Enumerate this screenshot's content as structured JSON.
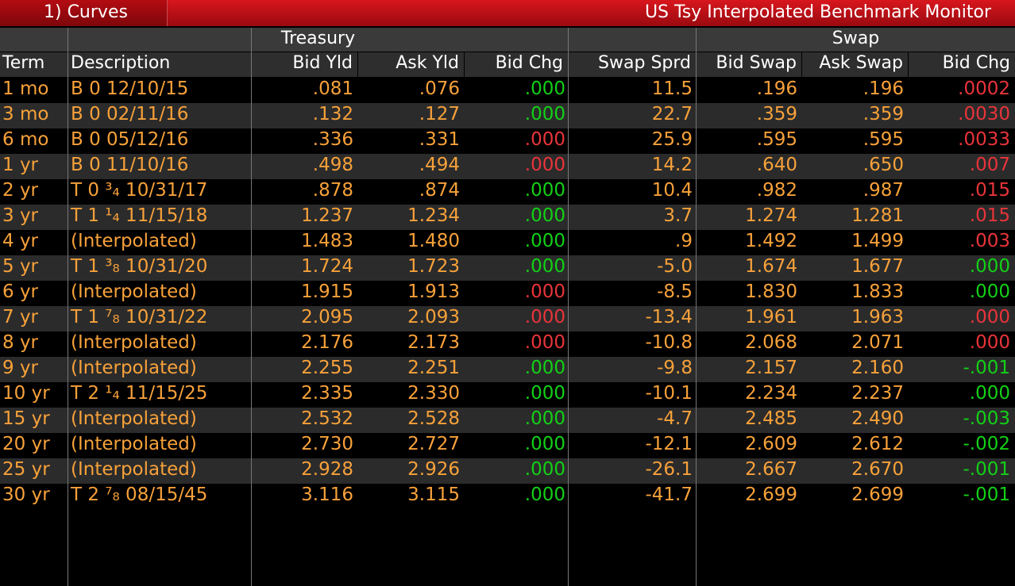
{
  "tab": {
    "label": "1) Curves"
  },
  "title": "US Tsy Interpolated Benchmark Monitor",
  "groups": {
    "treasury": "Treasury",
    "swap": "Swap"
  },
  "columns": {
    "term": "Term",
    "description": "Description",
    "bid_yld": "Bid Yld",
    "ask_yld": "Ask Yld",
    "bid_chg": "Bid Chg",
    "swap_sprd": "Swap Sprd",
    "bid_swap": "Bid Swap",
    "ask_swap": "Ask Swap",
    "swap_bid_chg": "Bid Chg"
  },
  "colors": {
    "orange": "#f7a13a",
    "up": "#13d017",
    "down": "#e8343a",
    "bar": "#c8141b"
  },
  "rows": [
    {
      "term": "1 mo",
      "desc": "B 0 12/10/15",
      "bid_yld": ".081",
      "ask_yld": ".076",
      "bid_chg": ".000",
      "bid_chg_color": "up",
      "swap_sprd": "11.5",
      "bid_swap": ".196",
      "ask_swap": ".196",
      "swap_chg": ".0002",
      "swap_chg_color": "down"
    },
    {
      "term": "3 mo",
      "desc": "B 0 02/11/16",
      "bid_yld": ".132",
      "ask_yld": ".127",
      "bid_chg": ".000",
      "bid_chg_color": "up",
      "swap_sprd": "22.7",
      "bid_swap": ".359",
      "ask_swap": ".359",
      "swap_chg": ".0030",
      "swap_chg_color": "down"
    },
    {
      "term": "6 mo",
      "desc": "B 0 05/12/16",
      "bid_yld": ".336",
      "ask_yld": ".331",
      "bid_chg": ".000",
      "bid_chg_color": "down",
      "swap_sprd": "25.9",
      "bid_swap": ".595",
      "ask_swap": ".595",
      "swap_chg": ".0033",
      "swap_chg_color": "down"
    },
    {
      "term": "1 yr",
      "desc": "B 0 11/10/16",
      "bid_yld": ".498",
      "ask_yld": ".494",
      "bid_chg": ".000",
      "bid_chg_color": "down",
      "swap_sprd": "14.2",
      "bid_swap": ".640",
      "ask_swap": ".650",
      "swap_chg": ".007",
      "swap_chg_color": "down"
    },
    {
      "term": "2 yr",
      "desc": "T 0 ³₄ 10/31/17",
      "bid_yld": ".878",
      "ask_yld": ".874",
      "bid_chg": ".000",
      "bid_chg_color": "up",
      "swap_sprd": "10.4",
      "bid_swap": ".982",
      "ask_swap": ".987",
      "swap_chg": ".015",
      "swap_chg_color": "down"
    },
    {
      "term": "3 yr",
      "desc": "T 1 ¹₄ 11/15/18",
      "bid_yld": "1.237",
      "ask_yld": "1.234",
      "bid_chg": ".000",
      "bid_chg_color": "up",
      "swap_sprd": "3.7",
      "bid_swap": "1.274",
      "ask_swap": "1.281",
      "swap_chg": ".015",
      "swap_chg_color": "down"
    },
    {
      "term": "4 yr",
      "desc": "(Interpolated)",
      "bid_yld": "1.483",
      "ask_yld": "1.480",
      "bid_chg": ".000",
      "bid_chg_color": "up",
      "swap_sprd": ".9",
      "bid_swap": "1.492",
      "ask_swap": "1.499",
      "swap_chg": ".003",
      "swap_chg_color": "down"
    },
    {
      "term": "5 yr",
      "desc": "T 1 ³₈ 10/31/20",
      "bid_yld": "1.724",
      "ask_yld": "1.723",
      "bid_chg": ".000",
      "bid_chg_color": "up",
      "swap_sprd": "-5.0",
      "bid_swap": "1.674",
      "ask_swap": "1.677",
      "swap_chg": ".000",
      "swap_chg_color": "up"
    },
    {
      "term": "6 yr",
      "desc": "(Interpolated)",
      "bid_yld": "1.915",
      "ask_yld": "1.913",
      "bid_chg": ".000",
      "bid_chg_color": "down",
      "swap_sprd": "-8.5",
      "bid_swap": "1.830",
      "ask_swap": "1.833",
      "swap_chg": ".000",
      "swap_chg_color": "up"
    },
    {
      "term": "7 yr",
      "desc": "T 1 ⁷₈ 10/31/22",
      "bid_yld": "2.095",
      "ask_yld": "2.093",
      "bid_chg": ".000",
      "bid_chg_color": "down",
      "swap_sprd": "-13.4",
      "bid_swap": "1.961",
      "ask_swap": "1.963",
      "swap_chg": ".000",
      "swap_chg_color": "down"
    },
    {
      "term": "8 yr",
      "desc": "(Interpolated)",
      "bid_yld": "2.176",
      "ask_yld": "2.173",
      "bid_chg": ".000",
      "bid_chg_color": "down",
      "swap_sprd": "-10.8",
      "bid_swap": "2.068",
      "ask_swap": "2.071",
      "swap_chg": ".000",
      "swap_chg_color": "down"
    },
    {
      "term": "9 yr",
      "desc": "(Interpolated)",
      "bid_yld": "2.255",
      "ask_yld": "2.251",
      "bid_chg": ".000",
      "bid_chg_color": "up",
      "swap_sprd": "-9.8",
      "bid_swap": "2.157",
      "ask_swap": "2.160",
      "swap_chg": "-.001",
      "swap_chg_color": "up"
    },
    {
      "term": "10 yr",
      "desc": "T 2 ¹₄ 11/15/25",
      "bid_yld": "2.335",
      "ask_yld": "2.330",
      "bid_chg": ".000",
      "bid_chg_color": "up",
      "swap_sprd": "-10.1",
      "bid_swap": "2.234",
      "ask_swap": "2.237",
      "swap_chg": ".000",
      "swap_chg_color": "up"
    },
    {
      "term": "15 yr",
      "desc": "(Interpolated)",
      "bid_yld": "2.532",
      "ask_yld": "2.528",
      "bid_chg": ".000",
      "bid_chg_color": "up",
      "swap_sprd": "-4.7",
      "bid_swap": "2.485",
      "ask_swap": "2.490",
      "swap_chg": "-.003",
      "swap_chg_color": "up"
    },
    {
      "term": "20 yr",
      "desc": "(Interpolated)",
      "bid_yld": "2.730",
      "ask_yld": "2.727",
      "bid_chg": ".000",
      "bid_chg_color": "up",
      "swap_sprd": "-12.1",
      "bid_swap": "2.609",
      "ask_swap": "2.612",
      "swap_chg": "-.002",
      "swap_chg_color": "up"
    },
    {
      "term": "25 yr",
      "desc": "(Interpolated)",
      "bid_yld": "2.928",
      "ask_yld": "2.926",
      "bid_chg": ".000",
      "bid_chg_color": "up",
      "swap_sprd": "-26.1",
      "bid_swap": "2.667",
      "ask_swap": "2.670",
      "swap_chg": "-.001",
      "swap_chg_color": "up"
    },
    {
      "term": "30 yr",
      "desc": "T 2 ⁷₈ 08/15/45",
      "bid_yld": "3.116",
      "ask_yld": "3.115",
      "bid_chg": ".000",
      "bid_chg_color": "up",
      "swap_sprd": "-41.7",
      "bid_swap": "2.699",
      "ask_swap": "2.699",
      "swap_chg": "-.001",
      "swap_chg_color": "up"
    }
  ]
}
